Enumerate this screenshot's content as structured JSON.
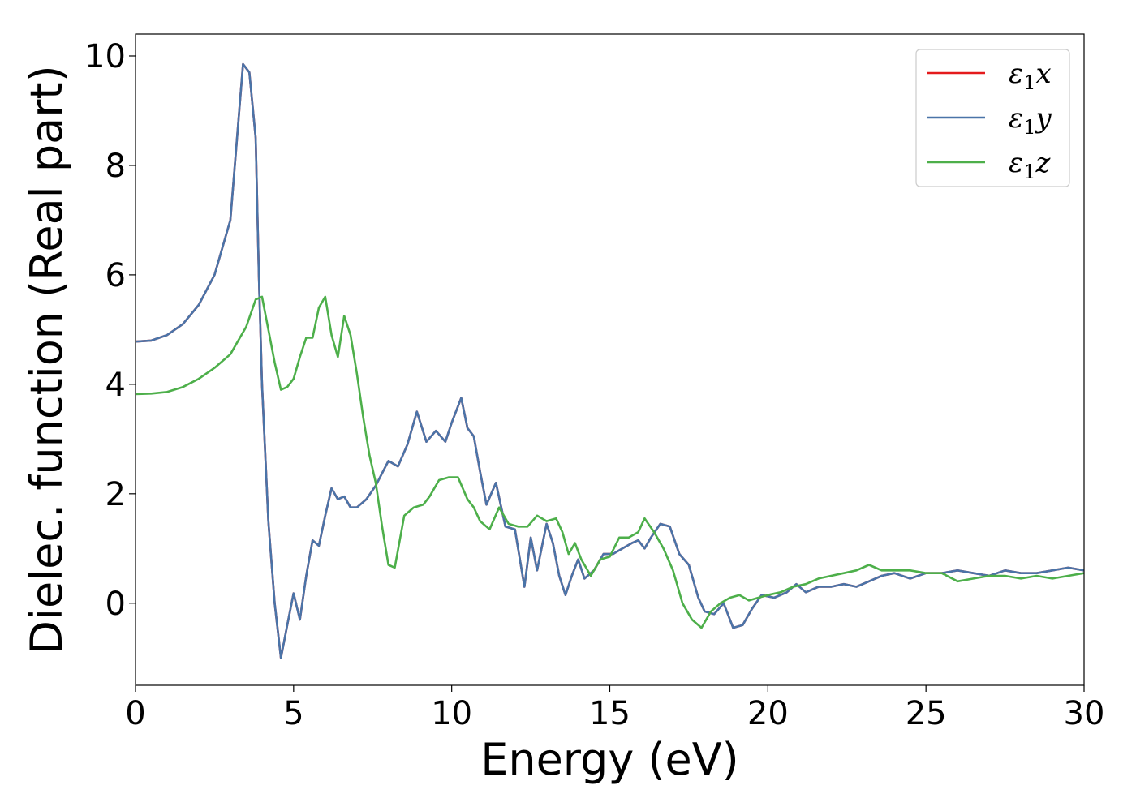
{
  "chart_data": {
    "type": "line",
    "xlabel": "Energy (eV)",
    "ylabel": "Dielec. function (Real part)",
    "xlim": [
      0,
      30
    ],
    "ylim": [
      -1.5,
      10.4
    ],
    "xticks": [
      0,
      5,
      10,
      15,
      20,
      25,
      30
    ],
    "yticks": [
      0,
      2,
      4,
      6,
      8,
      10
    ],
    "grid": false,
    "legend_position": "top-right",
    "series": [
      {
        "name": "ε1x",
        "name_base": "ε",
        "name_sub": "1",
        "name_tail": "x",
        "color": "#e41a1c",
        "points": [
          [
            0,
            4.78
          ],
          [
            0.5,
            4.8
          ],
          [
            1,
            4.9
          ],
          [
            1.5,
            5.1
          ],
          [
            2,
            5.45
          ],
          [
            2.5,
            6.0
          ],
          [
            3,
            7.0
          ],
          [
            3.4,
            9.85
          ],
          [
            3.6,
            9.7
          ],
          [
            3.8,
            8.5
          ],
          [
            3.9,
            6.0
          ],
          [
            4.0,
            4.0
          ],
          [
            4.2,
            1.5
          ],
          [
            4.4,
            0.0
          ],
          [
            4.6,
            -1.0
          ],
          [
            4.8,
            -0.4
          ],
          [
            5.0,
            0.18
          ],
          [
            5.2,
            -0.3
          ],
          [
            5.4,
            0.5
          ],
          [
            5.6,
            1.15
          ],
          [
            5.8,
            1.05
          ],
          [
            6.0,
            1.6
          ],
          [
            6.2,
            2.1
          ],
          [
            6.4,
            1.9
          ],
          [
            6.6,
            1.95
          ],
          [
            6.8,
            1.75
          ],
          [
            7.0,
            1.75
          ],
          [
            7.3,
            1.9
          ],
          [
            7.6,
            2.15
          ],
          [
            8.0,
            2.6
          ],
          [
            8.3,
            2.5
          ],
          [
            8.6,
            2.9
          ],
          [
            8.9,
            3.5
          ],
          [
            9.2,
            2.95
          ],
          [
            9.5,
            3.15
          ],
          [
            9.8,
            2.95
          ],
          [
            10.0,
            3.3
          ],
          [
            10.3,
            3.75
          ],
          [
            10.5,
            3.2
          ],
          [
            10.7,
            3.05
          ],
          [
            10.9,
            2.4
          ],
          [
            11.1,
            1.8
          ],
          [
            11.4,
            2.2
          ],
          [
            11.7,
            1.4
          ],
          [
            12.0,
            1.35
          ],
          [
            12.3,
            0.3
          ],
          [
            12.5,
            1.2
          ],
          [
            12.7,
            0.6
          ],
          [
            13.0,
            1.45
          ],
          [
            13.2,
            1.1
          ],
          [
            13.4,
            0.5
          ],
          [
            13.6,
            0.15
          ],
          [
            13.8,
            0.5
          ],
          [
            14.0,
            0.8
          ],
          [
            14.2,
            0.45
          ],
          [
            14.5,
            0.6
          ],
          [
            14.8,
            0.9
          ],
          [
            15.1,
            0.9
          ],
          [
            15.4,
            1.0
          ],
          [
            15.7,
            1.1
          ],
          [
            15.9,
            1.15
          ],
          [
            16.1,
            1.0
          ],
          [
            16.3,
            1.2
          ],
          [
            16.6,
            1.45
          ],
          [
            16.9,
            1.4
          ],
          [
            17.2,
            0.9
          ],
          [
            17.5,
            0.7
          ],
          [
            17.8,
            0.1
          ],
          [
            18.0,
            -0.15
          ],
          [
            18.3,
            -0.2
          ],
          [
            18.6,
            0.0
          ],
          [
            18.9,
            -0.45
          ],
          [
            19.2,
            -0.4
          ],
          [
            19.5,
            -0.1
          ],
          [
            19.8,
            0.15
          ],
          [
            20.2,
            0.1
          ],
          [
            20.6,
            0.2
          ],
          [
            20.9,
            0.35
          ],
          [
            21.2,
            0.2
          ],
          [
            21.6,
            0.3
          ],
          [
            22.0,
            0.3
          ],
          [
            22.4,
            0.35
          ],
          [
            22.8,
            0.3
          ],
          [
            23.2,
            0.4
          ],
          [
            23.6,
            0.5
          ],
          [
            24.0,
            0.55
          ],
          [
            24.5,
            0.45
          ],
          [
            25.0,
            0.55
          ],
          [
            25.5,
            0.55
          ],
          [
            26.0,
            0.6
          ],
          [
            26.5,
            0.55
          ],
          [
            27.0,
            0.5
          ],
          [
            27.5,
            0.6
          ],
          [
            28.0,
            0.55
          ],
          [
            28.5,
            0.55
          ],
          [
            29.0,
            0.6
          ],
          [
            29.5,
            0.65
          ],
          [
            30,
            0.6
          ]
        ]
      },
      {
        "name": "ε1y",
        "name_base": "ε",
        "name_sub": "1",
        "name_tail": "y",
        "color": "#4a74a8",
        "points": [
          [
            0,
            4.78
          ],
          [
            0.5,
            4.8
          ],
          [
            1,
            4.9
          ],
          [
            1.5,
            5.1
          ],
          [
            2,
            5.45
          ],
          [
            2.5,
            6.0
          ],
          [
            3,
            7.0
          ],
          [
            3.4,
            9.85
          ],
          [
            3.6,
            9.7
          ],
          [
            3.8,
            8.5
          ],
          [
            3.9,
            6.0
          ],
          [
            4.0,
            4.0
          ],
          [
            4.2,
            1.5
          ],
          [
            4.4,
            0.0
          ],
          [
            4.6,
            -1.0
          ],
          [
            4.8,
            -0.4
          ],
          [
            5.0,
            0.18
          ],
          [
            5.2,
            -0.3
          ],
          [
            5.4,
            0.5
          ],
          [
            5.6,
            1.15
          ],
          [
            5.8,
            1.05
          ],
          [
            6.0,
            1.6
          ],
          [
            6.2,
            2.1
          ],
          [
            6.4,
            1.9
          ],
          [
            6.6,
            1.95
          ],
          [
            6.8,
            1.75
          ],
          [
            7.0,
            1.75
          ],
          [
            7.3,
            1.9
          ],
          [
            7.6,
            2.15
          ],
          [
            8.0,
            2.6
          ],
          [
            8.3,
            2.5
          ],
          [
            8.6,
            2.9
          ],
          [
            8.9,
            3.5
          ],
          [
            9.2,
            2.95
          ],
          [
            9.5,
            3.15
          ],
          [
            9.8,
            2.95
          ],
          [
            10.0,
            3.3
          ],
          [
            10.3,
            3.75
          ],
          [
            10.5,
            3.2
          ],
          [
            10.7,
            3.05
          ],
          [
            10.9,
            2.4
          ],
          [
            11.1,
            1.8
          ],
          [
            11.4,
            2.2
          ],
          [
            11.7,
            1.4
          ],
          [
            12.0,
            1.35
          ],
          [
            12.3,
            0.3
          ],
          [
            12.5,
            1.2
          ],
          [
            12.7,
            0.6
          ],
          [
            13.0,
            1.45
          ],
          [
            13.2,
            1.1
          ],
          [
            13.4,
            0.5
          ],
          [
            13.6,
            0.15
          ],
          [
            13.8,
            0.5
          ],
          [
            14.0,
            0.8
          ],
          [
            14.2,
            0.45
          ],
          [
            14.5,
            0.6
          ],
          [
            14.8,
            0.9
          ],
          [
            15.1,
            0.9
          ],
          [
            15.4,
            1.0
          ],
          [
            15.7,
            1.1
          ],
          [
            15.9,
            1.15
          ],
          [
            16.1,
            1.0
          ],
          [
            16.3,
            1.2
          ],
          [
            16.6,
            1.45
          ],
          [
            16.9,
            1.4
          ],
          [
            17.2,
            0.9
          ],
          [
            17.5,
            0.7
          ],
          [
            17.8,
            0.1
          ],
          [
            18.0,
            -0.15
          ],
          [
            18.3,
            -0.2
          ],
          [
            18.6,
            0.0
          ],
          [
            18.9,
            -0.45
          ],
          [
            19.2,
            -0.4
          ],
          [
            19.5,
            -0.1
          ],
          [
            19.8,
            0.15
          ],
          [
            20.2,
            0.1
          ],
          [
            20.6,
            0.2
          ],
          [
            20.9,
            0.35
          ],
          [
            21.2,
            0.2
          ],
          [
            21.6,
            0.3
          ],
          [
            22.0,
            0.3
          ],
          [
            22.4,
            0.35
          ],
          [
            22.8,
            0.3
          ],
          [
            23.2,
            0.4
          ],
          [
            23.6,
            0.5
          ],
          [
            24.0,
            0.55
          ],
          [
            24.5,
            0.45
          ],
          [
            25.0,
            0.55
          ],
          [
            25.5,
            0.55
          ],
          [
            26.0,
            0.6
          ],
          [
            26.5,
            0.55
          ],
          [
            27.0,
            0.5
          ],
          [
            27.5,
            0.6
          ],
          [
            28.0,
            0.55
          ],
          [
            28.5,
            0.55
          ],
          [
            29.0,
            0.6
          ],
          [
            29.5,
            0.65
          ],
          [
            30,
            0.6
          ]
        ]
      },
      {
        "name": "ε1z",
        "name_base": "ε",
        "name_sub": "1",
        "name_tail": "z",
        "color": "#4daf4a",
        "points": [
          [
            0,
            3.82
          ],
          [
            0.5,
            3.83
          ],
          [
            1,
            3.86
          ],
          [
            1.5,
            3.95
          ],
          [
            2,
            4.1
          ],
          [
            2.5,
            4.3
          ],
          [
            3,
            4.55
          ],
          [
            3.5,
            5.05
          ],
          [
            3.8,
            5.55
          ],
          [
            4.0,
            5.6
          ],
          [
            4.2,
            5.0
          ],
          [
            4.4,
            4.4
          ],
          [
            4.6,
            3.9
          ],
          [
            4.8,
            3.95
          ],
          [
            5.0,
            4.1
          ],
          [
            5.2,
            4.5
          ],
          [
            5.4,
            4.85
          ],
          [
            5.6,
            4.85
          ],
          [
            5.8,
            5.4
          ],
          [
            6.0,
            5.6
          ],
          [
            6.2,
            4.9
          ],
          [
            6.4,
            4.5
          ],
          [
            6.6,
            5.25
          ],
          [
            6.8,
            4.9
          ],
          [
            7.0,
            4.2
          ],
          [
            7.2,
            3.4
          ],
          [
            7.4,
            2.7
          ],
          [
            7.6,
            2.2
          ],
          [
            7.8,
            1.4
          ],
          [
            8.0,
            0.7
          ],
          [
            8.2,
            0.65
          ],
          [
            8.5,
            1.6
          ],
          [
            8.8,
            1.75
          ],
          [
            9.1,
            1.8
          ],
          [
            9.3,
            1.95
          ],
          [
            9.6,
            2.25
          ],
          [
            9.9,
            2.3
          ],
          [
            10.2,
            2.3
          ],
          [
            10.5,
            1.9
          ],
          [
            10.7,
            1.75
          ],
          [
            10.9,
            1.5
          ],
          [
            11.2,
            1.35
          ],
          [
            11.5,
            1.75
          ],
          [
            11.8,
            1.45
          ],
          [
            12.1,
            1.4
          ],
          [
            12.4,
            1.4
          ],
          [
            12.7,
            1.6
          ],
          [
            13.0,
            1.5
          ],
          [
            13.3,
            1.55
          ],
          [
            13.5,
            1.3
          ],
          [
            13.7,
            0.9
          ],
          [
            13.9,
            1.1
          ],
          [
            14.1,
            0.8
          ],
          [
            14.4,
            0.5
          ],
          [
            14.7,
            0.8
          ],
          [
            15.0,
            0.85
          ],
          [
            15.3,
            1.2
          ],
          [
            15.6,
            1.2
          ],
          [
            15.9,
            1.3
          ],
          [
            16.1,
            1.55
          ],
          [
            16.4,
            1.3
          ],
          [
            16.7,
            1.0
          ],
          [
            17.0,
            0.6
          ],
          [
            17.3,
            0.0
          ],
          [
            17.6,
            -0.3
          ],
          [
            17.9,
            -0.45
          ],
          [
            18.2,
            -0.15
          ],
          [
            18.5,
            0.0
          ],
          [
            18.8,
            0.1
          ],
          [
            19.1,
            0.15
          ],
          [
            19.4,
            0.05
          ],
          [
            19.7,
            0.1
          ],
          [
            20.0,
            0.15
          ],
          [
            20.4,
            0.2
          ],
          [
            20.8,
            0.3
          ],
          [
            21.2,
            0.35
          ],
          [
            21.6,
            0.45
          ],
          [
            22.0,
            0.5
          ],
          [
            22.4,
            0.55
          ],
          [
            22.8,
            0.6
          ],
          [
            23.2,
            0.7
          ],
          [
            23.6,
            0.6
          ],
          [
            24.0,
            0.6
          ],
          [
            24.5,
            0.6
          ],
          [
            25.0,
            0.55
          ],
          [
            25.5,
            0.55
          ],
          [
            26.0,
            0.4
          ],
          [
            26.5,
            0.45
          ],
          [
            27.0,
            0.5
          ],
          [
            27.5,
            0.5
          ],
          [
            28.0,
            0.45
          ],
          [
            28.5,
            0.5
          ],
          [
            29.0,
            0.45
          ],
          [
            29.5,
            0.5
          ],
          [
            30,
            0.55
          ]
        ]
      }
    ]
  }
}
